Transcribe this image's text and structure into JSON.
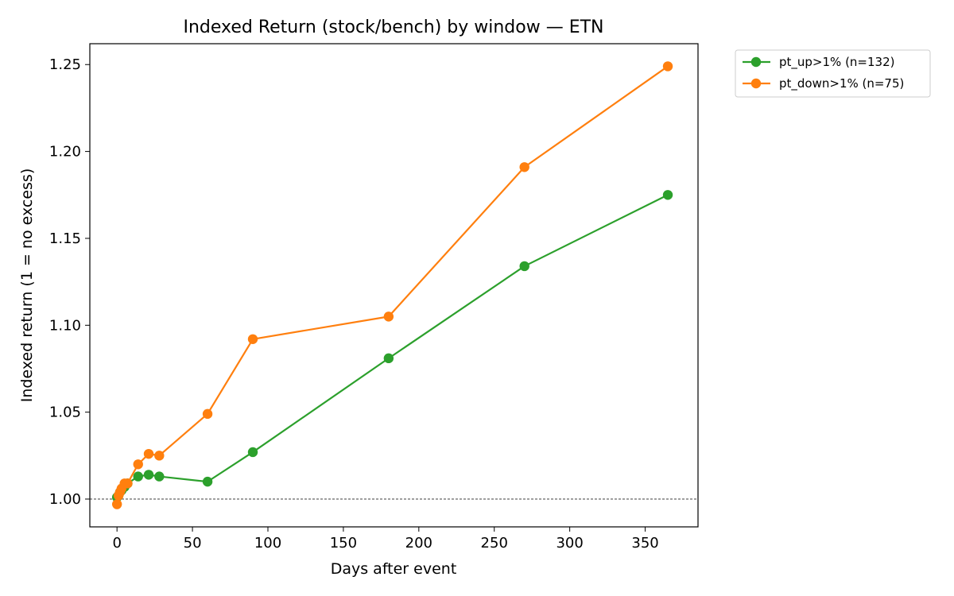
{
  "chart_data": {
    "type": "line",
    "title": "Indexed Return (stock/bench) by window — ETN",
    "xlabel": "Days after event",
    "ylabel": "Indexed return (1 = no excess)",
    "xlim": [
      -18,
      385
    ],
    "ylim": [
      0.984,
      1.262
    ],
    "xticks": [
      0,
      50,
      100,
      150,
      200,
      250,
      300,
      350
    ],
    "yticks": [
      1.0,
      1.05,
      1.1,
      1.15,
      1.2,
      1.25
    ],
    "ytick_labels": [
      "1.00",
      "1.05",
      "1.10",
      "1.15",
      "1.20",
      "1.25"
    ],
    "reference_line": {
      "y": 1.0,
      "style": "dashed"
    },
    "legend_position": "outside-top-right",
    "series": [
      {
        "name": "pt_up>1% (n=132)",
        "color": "#2ca02c",
        "x": [
          0,
          1,
          2,
          3,
          5,
          7,
          14,
          21,
          28,
          60,
          90,
          180,
          270,
          365
        ],
        "y": [
          1.001,
          1.002,
          1.004,
          1.005,
          1.007,
          1.009,
          1.013,
          1.014,
          1.013,
          1.01,
          1.027,
          1.081,
          1.134,
          1.175
        ]
      },
      {
        "name": "pt_down>1% (n=75)",
        "color": "#ff7f0e",
        "x": [
          0,
          1,
          2,
          3,
          5,
          7,
          14,
          21,
          28,
          60,
          90,
          180,
          270,
          365
        ],
        "y": [
          0.997,
          1.002,
          1.004,
          1.006,
          1.009,
          1.009,
          1.02,
          1.026,
          1.025,
          1.049,
          1.092,
          1.105,
          1.191,
          1.249
        ]
      }
    ]
  }
}
